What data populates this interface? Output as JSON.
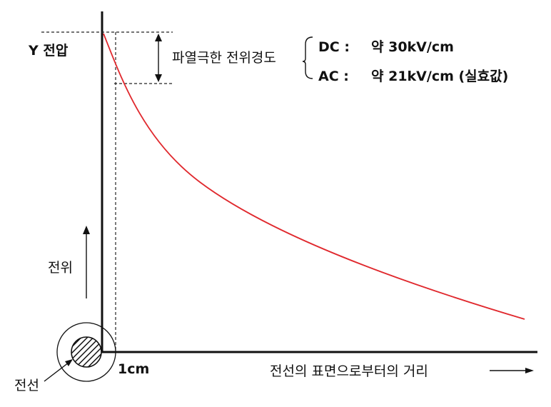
{
  "diagram": {
    "y_axis_label": "Y 전압",
    "field_label": "파열극한 전위경도",
    "dc_label": "DC : ",
    "dc_value": "약 30kV/cm",
    "ac_label": "AC : ",
    "ac_value": "약 21kV/cm (실효값)",
    "potential_label": "전위",
    "x_tick_label": "1cm",
    "x_axis_label": "전선의 표면으로부터의 거리",
    "wire_label": "전선"
  },
  "colors": {
    "curve": "#e0282d",
    "axis": "#111111",
    "background": "#ffffff"
  }
}
